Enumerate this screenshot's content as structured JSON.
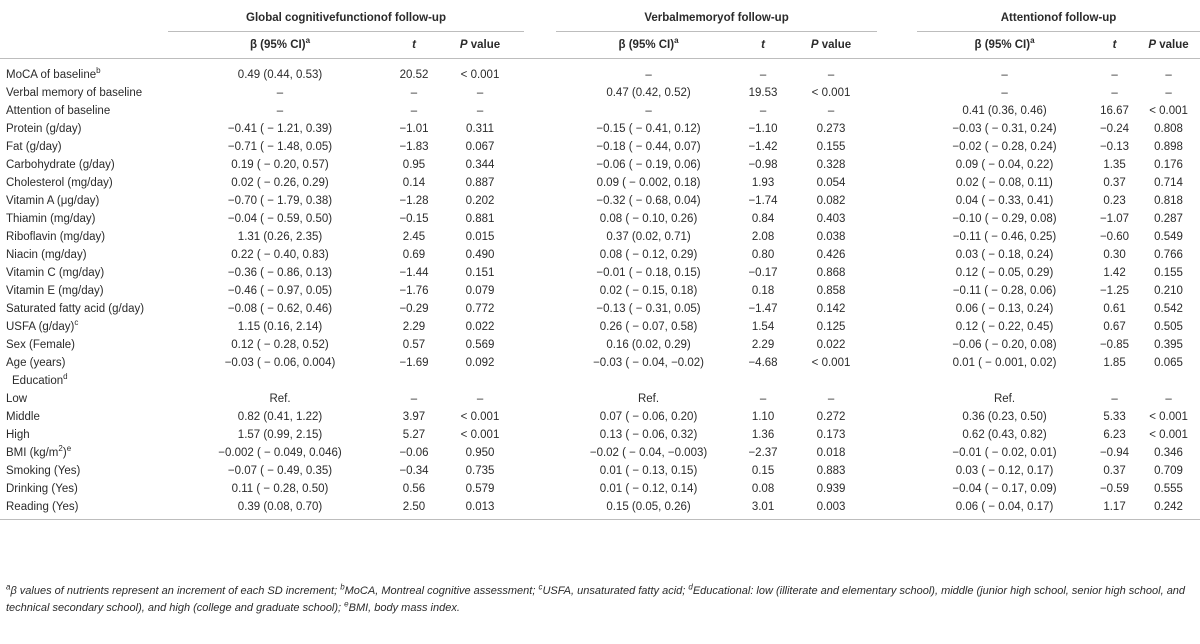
{
  "groups": {
    "global": "Global cognitivefunctionof follow-up",
    "verbal": "Verbalmemoryof follow-up",
    "attention": "Attentionof follow-up"
  },
  "headers": {
    "beta": "β (95% CI)",
    "beta_sup": "a",
    "t": "t",
    "p": "P value",
    "p_rest": " value",
    "p_letter": "P"
  },
  "rows": [
    {
      "label": "MoCA of baseline",
      "sup": "b",
      "g": [
        "0.49 (0.44, 0.53)",
        "20.52",
        "< 0.001"
      ],
      "v": [
        "–",
        "–",
        "–"
      ],
      "a": [
        "–",
        "–",
        "–"
      ]
    },
    {
      "label": "Verbal memory of baseline",
      "sup": "",
      "g": [
        "–",
        "–",
        "–"
      ],
      "v": [
        "0.47 (0.42, 0.52)",
        "19.53",
        "< 0.001"
      ],
      "a": [
        "–",
        "–",
        "–"
      ]
    },
    {
      "label": "Attention of baseline",
      "sup": "",
      "g": [
        "–",
        "–",
        "–"
      ],
      "v": [
        "–",
        "–",
        "–"
      ],
      "a": [
        "0.41 (0.36, 0.46)",
        "16.67",
        "< 0.001"
      ]
    },
    {
      "label": "Protein (g/day)",
      "sup": "",
      "g": [
        "−0.41 ( − 1.21, 0.39)",
        "−1.01",
        "0.311"
      ],
      "v": [
        "−0.15 ( − 0.41, 0.12)",
        "−1.10",
        "0.273"
      ],
      "a": [
        "−0.03 ( − 0.31, 0.24)",
        "−0.24",
        "0.808"
      ]
    },
    {
      "label": "Fat (g/day)",
      "sup": "",
      "g": [
        "−0.71 ( − 1.48, 0.05)",
        "−1.83",
        "0.067"
      ],
      "v": [
        "−0.18 ( − 0.44, 0.07)",
        "−1.42",
        "0.155"
      ],
      "a": [
        "−0.02 ( − 0.28, 0.24)",
        "−0.13",
        "0.898"
      ]
    },
    {
      "label": "Carbohydrate (g/day)",
      "sup": "",
      "g": [
        "0.19 ( − 0.20, 0.57)",
        "0.95",
        "0.344"
      ],
      "v": [
        "−0.06 ( − 0.19, 0.06)",
        "−0.98",
        "0.328"
      ],
      "a": [
        "0.09 ( − 0.04, 0.22)",
        "1.35",
        "0.176"
      ]
    },
    {
      "label": "Cholesterol (mg/day)",
      "sup": "",
      "g": [
        "0.02 ( − 0.26, 0.29)",
        "0.14",
        "0.887"
      ],
      "v": [
        "0.09 ( − 0.002, 0.18)",
        "1.93",
        "0.054"
      ],
      "a": [
        "0.02 ( − 0.08, 0.11)",
        "0.37",
        "0.714"
      ]
    },
    {
      "label": "Vitamin A (μg/day)",
      "sup": "",
      "g": [
        "−0.70 ( − 1.79, 0.38)",
        "−1.28",
        "0.202"
      ],
      "v": [
        "−0.32 ( − 0.68, 0.04)",
        "−1.74",
        "0.082"
      ],
      "a": [
        "0.04 ( − 0.33, 0.41)",
        "0.23",
        "0.818"
      ]
    },
    {
      "label": "Thiamin (mg/day)",
      "sup": "",
      "g": [
        "−0.04 ( − 0.59, 0.50)",
        "−0.15",
        "0.881"
      ],
      "v": [
        "0.08 ( − 0.10, 0.26)",
        "0.84",
        "0.403"
      ],
      "a": [
        "−0.10 ( − 0.29, 0.08)",
        "−1.07",
        "0.287"
      ]
    },
    {
      "label": "Riboflavin (mg/day)",
      "sup": "",
      "g": [
        "1.31 (0.26, 2.35)",
        "2.45",
        "0.015"
      ],
      "v": [
        "0.37 (0.02, 0.71)",
        "2.08",
        "0.038"
      ],
      "a": [
        "−0.11 ( − 0.46, 0.25)",
        "−0.60",
        "0.549"
      ]
    },
    {
      "label": "Niacin (mg/day)",
      "sup": "",
      "g": [
        "0.22 ( − 0.40, 0.83)",
        "0.69",
        "0.490"
      ],
      "v": [
        "0.08 ( − 0.12, 0.29)",
        "0.80",
        "0.426"
      ],
      "a": [
        "0.03 ( − 0.18, 0.24)",
        "0.30",
        "0.766"
      ]
    },
    {
      "label": "Vitamin C (mg/day)",
      "sup": "",
      "g": [
        "−0.36 ( − 0.86, 0.13)",
        "−1.44",
        "0.151"
      ],
      "v": [
        "−0.01 ( − 0.18, 0.15)",
        "−0.17",
        "0.868"
      ],
      "a": [
        "0.12 ( − 0.05, 0.29)",
        "1.42",
        "0.155"
      ]
    },
    {
      "label": "Vitamin E (mg/day)",
      "sup": "",
      "g": [
        "−0.46 ( − 0.97, 0.05)",
        "−1.76",
        "0.079"
      ],
      "v": [
        "0.02 ( − 0.15, 0.18)",
        "0.18",
        "0.858"
      ],
      "a": [
        "−0.11 ( − 0.28, 0.06)",
        "−1.25",
        "0.210"
      ]
    },
    {
      "label": "Saturated fatty acid (g/day)",
      "sup": "",
      "g": [
        "−0.08 ( − 0.62, 0.46)",
        "−0.29",
        "0.772"
      ],
      "v": [
        "−0.13 ( − 0.31, 0.05)",
        "−1.47",
        "0.142"
      ],
      "a": [
        "0.06 ( − 0.13, 0.24)",
        "0.61",
        "0.542"
      ]
    },
    {
      "label": "USFA (g/day)",
      "sup": "c",
      "g": [
        "1.15 (0.16, 2.14)",
        "2.29",
        "0.022"
      ],
      "v": [
        "0.26 ( − 0.07, 0.58)",
        "1.54",
        "0.125"
      ],
      "a": [
        "0.12 ( − 0.22, 0.45)",
        "0.67",
        "0.505"
      ]
    },
    {
      "label": "Sex (Female)",
      "sup": "",
      "g": [
        "0.12 ( − 0.28, 0.52)",
        "0.57",
        "0.569"
      ],
      "v": [
        "0.16 (0.02, 0.29)",
        "2.29",
        "0.022"
      ],
      "a": [
        "−0.06 ( − 0.20, 0.08)",
        "−0.85",
        "0.395"
      ]
    },
    {
      "label": "Age (years)",
      "sup": "",
      "g": [
        "−0.03 ( − 0.06, 0.004)",
        "−1.69",
        "0.092"
      ],
      "v": [
        "−0.03 ( − 0.04, −0.02)",
        "−4.68",
        "< 0.001"
      ],
      "a": [
        "0.01 ( − 0.001, 0.02)",
        "1.85",
        "0.065"
      ]
    }
  ],
  "education": {
    "label": "Education",
    "sup": "d"
  },
  "edu_rows": [
    {
      "label": "Low",
      "g": [
        "Ref.",
        "–",
        "–"
      ],
      "v": [
        "Ref.",
        "–",
        "–"
      ],
      "a": [
        "Ref.",
        "–",
        "–"
      ]
    },
    {
      "label": "Middle",
      "g": [
        "0.82 (0.41, 1.22)",
        "3.97",
        "< 0.001"
      ],
      "v": [
        "0.07 ( − 0.06, 0.20)",
        "1.10",
        "0.272"
      ],
      "a": [
        "0.36 (0.23, 0.50)",
        "5.33",
        "< 0.001"
      ]
    },
    {
      "label": "High",
      "g": [
        "1.57 (0.99, 2.15)",
        "5.27",
        "< 0.001"
      ],
      "v": [
        "0.13 ( − 0.06, 0.32)",
        "1.36",
        "0.173"
      ],
      "a": [
        "0.62 (0.43, 0.82)",
        "6.23",
        "< 0.001"
      ]
    }
  ],
  "tail_rows": [
    {
      "label": "BMI (kg/m",
      "label2": ")",
      "sup_inner": "2",
      "sup": "e",
      "g": [
        "−0.002 ( − 0.049, 0.046)",
        "−0.06",
        "0.950"
      ],
      "v": [
        "−0.02 ( − 0.04, −0.003)",
        "−2.37",
        "0.018"
      ],
      "a": [
        "−0.01 ( − 0.02, 0.01)",
        "−0.94",
        "0.346"
      ]
    },
    {
      "label": "Smoking (Yes)",
      "sup": "",
      "g": [
        "−0.07 ( − 0.49, 0.35)",
        "−0.34",
        "0.735"
      ],
      "v": [
        "0.01 ( − 0.13, 0.15)",
        "0.15",
        "0.883"
      ],
      "a": [
        "0.03 ( − 0.12, 0.17)",
        "0.37",
        "0.709"
      ]
    },
    {
      "label": "Drinking (Yes)",
      "sup": "",
      "g": [
        "0.11 ( − 0.28, 0.50)",
        "0.56",
        "0.579"
      ],
      "v": [
        "0.01 ( − 0.12, 0.14)",
        "0.08",
        "0.939"
      ],
      "a": [
        "−0.04 ( − 0.17, 0.09)",
        "−0.59",
        "0.555"
      ]
    },
    {
      "label": "Reading (Yes)",
      "sup": "",
      "g": [
        "0.39 (0.08, 0.70)",
        "2.50",
        "0.013"
      ],
      "v": [
        "0.15 (0.05, 0.26)",
        "3.01",
        "0.003"
      ],
      "a": [
        "0.06 ( − 0.04, 0.17)",
        "1.17",
        "0.242"
      ]
    }
  ],
  "footnote": [
    {
      "sup": "a",
      "text": "β values of nutrients represent an increment of each SD increment; "
    },
    {
      "sup": "b",
      "text": "MoCA, Montreal cognitive assessment; "
    },
    {
      "sup": "c",
      "text": "USFA, unsaturated fatty acid; "
    },
    {
      "sup": "d",
      "text": "Educational: low (illiterate and elementary school), middle (junior high school, senior high school, and technical secondary school), and high (college and graduate school); "
    },
    {
      "sup": "e",
      "text": "BMI, body mass index."
    }
  ]
}
